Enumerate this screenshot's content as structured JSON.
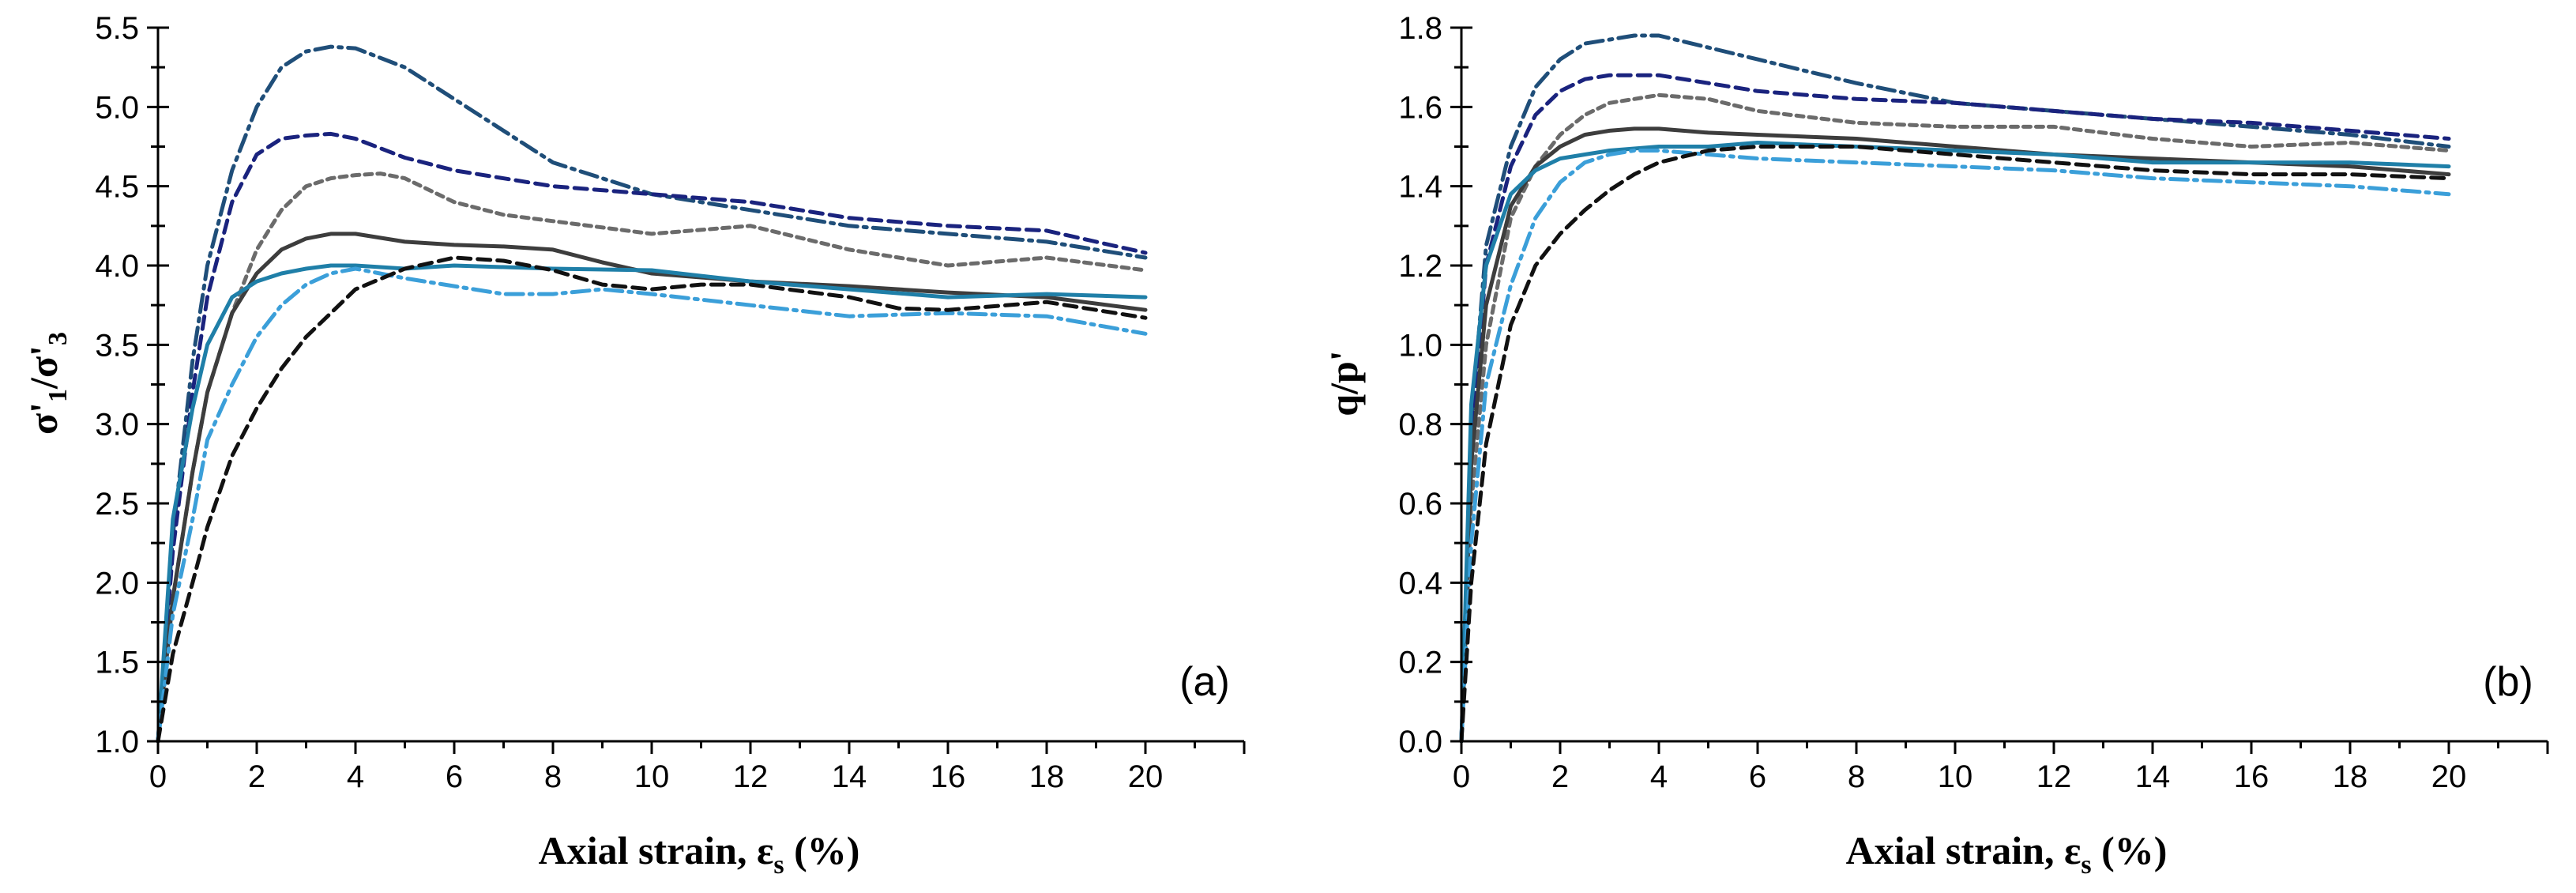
{
  "chart_data": [
    {
      "type": "line",
      "panel_label": "(a)",
      "xlabel_main": "Axial strain, ε",
      "xlabel_sub": "s",
      "xlabel_tail": " (%)",
      "ylabel": "σ'1/σ'3",
      "ylabel_parts": {
        "a": "σ'",
        "a_sub": "1",
        "b": "/σ'",
        "b_sub": "3"
      },
      "xlim": [
        0,
        22
      ],
      "ylim": [
        1.0,
        5.5
      ],
      "xticks": [
        0,
        2,
        4,
        6,
        8,
        10,
        12,
        14,
        16,
        18,
        20
      ],
      "xtick_labels": [
        "0",
        "2",
        "4",
        "6",
        "8",
        "10",
        "12",
        "14",
        "16",
        "18",
        "20"
      ],
      "yticks": [
        1.0,
        1.5,
        2.0,
        2.5,
        3.0,
        3.5,
        4.0,
        4.5,
        5.0,
        5.5
      ],
      "ytick_labels": [
        "1.0",
        "1.5",
        "2.0",
        "2.5",
        "3.0",
        "3.5",
        "4.0",
        "4.5",
        "5.0",
        "5.5"
      ],
      "grid": false,
      "series": [
        {
          "name": "dash-dot dark blue",
          "color": "#1f4e79",
          "style": "dashdot",
          "x": [
            0,
            0.3,
            0.7,
            1.0,
            1.5,
            2.0,
            2.5,
            3.0,
            3.5,
            4.0,
            5.0,
            6.0,
            8.0,
            10.0,
            12.0,
            14.0,
            16.0,
            18.0,
            20.0
          ],
          "y": [
            1.0,
            2.3,
            3.4,
            4.0,
            4.6,
            5.0,
            5.25,
            5.35,
            5.38,
            5.37,
            5.25,
            5.05,
            4.65,
            4.45,
            4.35,
            4.25,
            4.2,
            4.15,
            4.05
          ]
        },
        {
          "name": "dashed navy",
          "color": "#1a237e",
          "style": "dash",
          "x": [
            0,
            0.3,
            0.7,
            1.0,
            1.5,
            2.0,
            2.5,
            3.0,
            3.5,
            4.0,
            5.0,
            6.0,
            8.0,
            10.0,
            12.0,
            14.0,
            16.0,
            18.0,
            20.0
          ],
          "y": [
            1.0,
            2.2,
            3.2,
            3.8,
            4.4,
            4.7,
            4.8,
            4.82,
            4.83,
            4.8,
            4.68,
            4.6,
            4.5,
            4.45,
            4.4,
            4.3,
            4.25,
            4.22,
            4.08
          ]
        },
        {
          "name": "short-dash grey",
          "color": "#6b6b6b",
          "style": "shortdash",
          "x": [
            0,
            0.3,
            0.7,
            1.0,
            1.5,
            2.0,
            2.5,
            3.0,
            3.5,
            4.0,
            4.5,
            5.0,
            6.0,
            7.0,
            8.0,
            10.0,
            12.0,
            14.0,
            16.0,
            18.0,
            20.0
          ],
          "y": [
            1.0,
            1.9,
            2.7,
            3.2,
            3.7,
            4.1,
            4.35,
            4.5,
            4.55,
            4.57,
            4.58,
            4.55,
            4.4,
            4.32,
            4.28,
            4.2,
            4.25,
            4.1,
            4.0,
            4.05,
            3.97
          ]
        },
        {
          "name": "solid dark grey",
          "color": "#3d3d3d",
          "style": "solid",
          "x": [
            0,
            0.3,
            0.7,
            1.0,
            1.5,
            2.0,
            2.5,
            3.0,
            3.5,
            4.0,
            5.0,
            6.0,
            7.0,
            8.0,
            9.0,
            10.0,
            12.0,
            14.0,
            16.0,
            18.0,
            20.0
          ],
          "y": [
            1.0,
            1.9,
            2.7,
            3.2,
            3.7,
            3.95,
            4.1,
            4.17,
            4.2,
            4.2,
            4.15,
            4.13,
            4.12,
            4.1,
            4.02,
            3.95,
            3.9,
            3.87,
            3.83,
            3.8,
            3.72
          ]
        },
        {
          "name": "solid teal",
          "color": "#1f7fa8",
          "style": "solid",
          "x": [
            0,
            0.3,
            0.7,
            1.0,
            1.5,
            2.0,
            2.5,
            3.0,
            3.5,
            4.0,
            5.0,
            6.0,
            8.0,
            10.0,
            12.0,
            14.0,
            16.0,
            18.0,
            20.0
          ],
          "y": [
            1.0,
            2.4,
            3.1,
            3.5,
            3.8,
            3.9,
            3.95,
            3.98,
            4.0,
            4.0,
            3.98,
            4.0,
            3.98,
            3.97,
            3.9,
            3.85,
            3.8,
            3.82,
            3.8
          ]
        },
        {
          "name": "dash-dot light blue",
          "color": "#3b9fd9",
          "style": "dashdot",
          "x": [
            0,
            0.3,
            0.7,
            1.0,
            1.5,
            2.0,
            2.5,
            3.0,
            3.5,
            4.0,
            5.0,
            6.0,
            7.0,
            8.0,
            9.0,
            10.0,
            12.0,
            14.0,
            16.0,
            18.0,
            20.0
          ],
          "y": [
            1.0,
            1.8,
            2.4,
            2.9,
            3.25,
            3.55,
            3.75,
            3.88,
            3.95,
            3.98,
            3.92,
            3.87,
            3.82,
            3.82,
            3.85,
            3.82,
            3.75,
            3.68,
            3.7,
            3.68,
            3.57
          ]
        },
        {
          "name": "dashed black",
          "color": "#111111",
          "style": "dash",
          "x": [
            0,
            0.3,
            0.7,
            1.0,
            1.5,
            2.0,
            2.5,
            3.0,
            3.5,
            4.0,
            5.0,
            6.0,
            7.0,
            8.0,
            9.0,
            10.0,
            11.0,
            12.0,
            14.0,
            15.0,
            16.0,
            18.0,
            20.0
          ],
          "y": [
            1.0,
            1.55,
            2.0,
            2.35,
            2.8,
            3.1,
            3.35,
            3.55,
            3.7,
            3.85,
            3.98,
            4.05,
            4.03,
            3.97,
            3.88,
            3.85,
            3.88,
            3.88,
            3.8,
            3.73,
            3.72,
            3.77,
            3.67
          ]
        }
      ]
    },
    {
      "type": "line",
      "panel_label": "(b)",
      "xlabel_main": "Axial strain, ε",
      "xlabel_sub": "s",
      "xlabel_tail": " (%)",
      "ylabel": "q/p'",
      "xlim": [
        0,
        22
      ],
      "ylim": [
        0.0,
        1.8
      ],
      "xticks": [
        0,
        2,
        4,
        6,
        8,
        10,
        12,
        14,
        16,
        18,
        20
      ],
      "xtick_labels": [
        "0",
        "2",
        "4",
        "6",
        "8",
        "10",
        "12",
        "14",
        "16",
        "18",
        "20"
      ],
      "yticks": [
        0.0,
        0.2,
        0.4,
        0.6,
        0.8,
        1.0,
        1.2,
        1.4,
        1.6,
        1.8
      ],
      "ytick_labels": [
        "0.0",
        "0.2",
        "0.4",
        "0.6",
        "0.8",
        "1.0",
        "1.2",
        "1.4",
        "1.6",
        "1.8"
      ],
      "grid": false,
      "series": [
        {
          "name": "dash-dot dark blue",
          "color": "#1f4e79",
          "style": "dashdot",
          "x": [
            0,
            0.2,
            0.5,
            1.0,
            1.5,
            2.0,
            2.5,
            3.0,
            3.5,
            4.0,
            5.0,
            6.0,
            8.0,
            10.0,
            12.0,
            14.0,
            16.0,
            18.0,
            20.0
          ],
          "y": [
            0.0,
            0.8,
            1.25,
            1.5,
            1.65,
            1.72,
            1.76,
            1.77,
            1.78,
            1.78,
            1.75,
            1.72,
            1.66,
            1.61,
            1.59,
            1.57,
            1.55,
            1.53,
            1.5
          ]
        },
        {
          "name": "dashed navy",
          "color": "#1a237e",
          "style": "dash",
          "x": [
            0,
            0.2,
            0.5,
            1.0,
            1.5,
            2.0,
            2.5,
            3.0,
            3.5,
            4.0,
            5.0,
            6.0,
            8.0,
            10.0,
            12.0,
            14.0,
            16.0,
            18.0,
            20.0
          ],
          "y": [
            0.0,
            0.75,
            1.2,
            1.45,
            1.58,
            1.64,
            1.67,
            1.68,
            1.68,
            1.68,
            1.66,
            1.64,
            1.62,
            1.61,
            1.59,
            1.57,
            1.56,
            1.54,
            1.52
          ]
        },
        {
          "name": "short-dash grey",
          "color": "#6b6b6b",
          "style": "shortdash",
          "x": [
            0,
            0.2,
            0.5,
            1.0,
            1.5,
            2.0,
            2.5,
            3.0,
            3.5,
            4.0,
            5.0,
            6.0,
            8.0,
            10.0,
            12.0,
            14.0,
            16.0,
            18.0,
            20.0
          ],
          "y": [
            0.0,
            0.6,
            1.0,
            1.32,
            1.45,
            1.53,
            1.58,
            1.61,
            1.62,
            1.63,
            1.62,
            1.59,
            1.56,
            1.55,
            1.55,
            1.52,
            1.5,
            1.51,
            1.49
          ]
        },
        {
          "name": "solid dark grey",
          "color": "#3d3d3d",
          "style": "solid",
          "x": [
            0,
            0.2,
            0.5,
            1.0,
            1.5,
            2.0,
            2.5,
            3.0,
            3.5,
            4.0,
            5.0,
            6.0,
            8.0,
            10.0,
            12.0,
            14.0,
            16.0,
            18.0,
            20.0
          ],
          "y": [
            0.0,
            0.7,
            1.1,
            1.35,
            1.45,
            1.5,
            1.53,
            1.54,
            1.545,
            1.545,
            1.535,
            1.53,
            1.52,
            1.5,
            1.48,
            1.47,
            1.46,
            1.45,
            1.43
          ]
        },
        {
          "name": "solid teal",
          "color": "#1f7fa8",
          "style": "solid",
          "x": [
            0,
            0.2,
            0.5,
            1.0,
            1.5,
            2.0,
            2.5,
            3.0,
            3.5,
            4.0,
            5.0,
            6.0,
            8.0,
            10.0,
            12.0,
            14.0,
            16.0,
            18.0,
            20.0
          ],
          "y": [
            0.0,
            0.85,
            1.2,
            1.38,
            1.44,
            1.47,
            1.48,
            1.49,
            1.495,
            1.5,
            1.5,
            1.51,
            1.5,
            1.49,
            1.48,
            1.46,
            1.46,
            1.46,
            1.45
          ]
        },
        {
          "name": "dash-dot light blue",
          "color": "#3b9fd9",
          "style": "dashdot",
          "x": [
            0,
            0.2,
            0.5,
            1.0,
            1.5,
            2.0,
            2.5,
            3.0,
            3.5,
            4.0,
            5.0,
            6.0,
            8.0,
            10.0,
            12.0,
            14.0,
            16.0,
            18.0,
            20.0
          ],
          "y": [
            0.0,
            0.5,
            0.9,
            1.15,
            1.32,
            1.41,
            1.46,
            1.48,
            1.49,
            1.49,
            1.48,
            1.47,
            1.46,
            1.45,
            1.44,
            1.42,
            1.41,
            1.4,
            1.38
          ]
        },
        {
          "name": "dashed black",
          "color": "#111111",
          "style": "dash",
          "x": [
            0,
            0.2,
            0.5,
            1.0,
            1.5,
            2.0,
            2.5,
            3.0,
            3.5,
            4.0,
            5.0,
            6.0,
            8.0,
            10.0,
            12.0,
            14.0,
            16.0,
            18.0,
            20.0
          ],
          "y": [
            0.0,
            0.4,
            0.75,
            1.05,
            1.2,
            1.28,
            1.34,
            1.39,
            1.43,
            1.46,
            1.49,
            1.5,
            1.5,
            1.48,
            1.46,
            1.44,
            1.43,
            1.43,
            1.42
          ]
        }
      ]
    }
  ]
}
